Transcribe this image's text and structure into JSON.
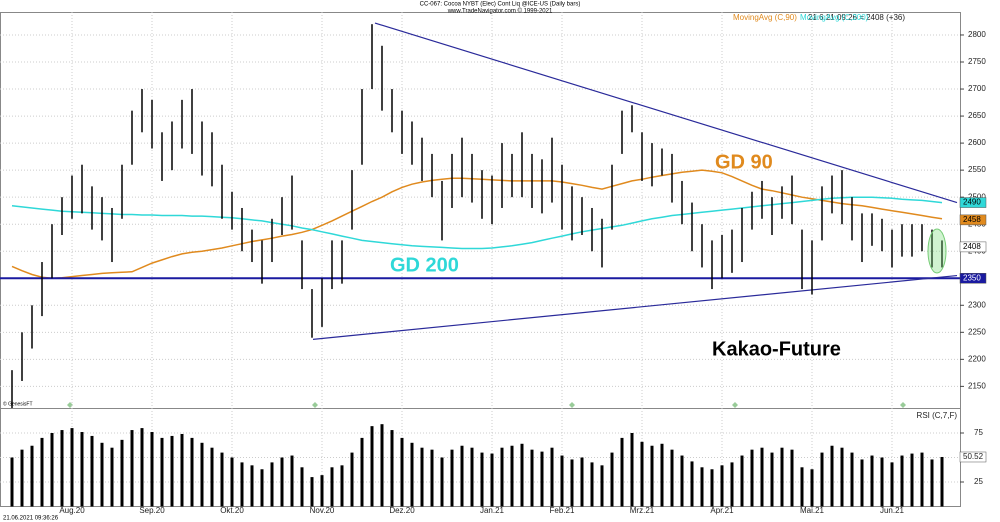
{
  "chart_data": [
    {
      "type": "ohlc",
      "title": "CC-067: Cocoa NYBT (Elec) Cont Liq @ICE-US  (Daily bars)",
      "subtitle": "www.TradeNavigator.com © 1999-2021",
      "stamp": "21.6.21 09:26 = 2408 (+36)",
      "source": "© GenesisFT",
      "footer": "21.06.2021 09:36:26",
      "categories": [
        null,
        null,
        null,
        null,
        null,
        null,
        "Aug.20",
        null,
        null,
        null,
        null,
        null,
        null,
        null,
        "Sep.20",
        null,
        null,
        null,
        null,
        null,
        null,
        null,
        "Okt.20",
        null,
        null,
        null,
        null,
        null,
        null,
        null,
        null,
        "Nov.20",
        null,
        null,
        null,
        null,
        null,
        null,
        null,
        "Dez.20",
        null,
        null,
        null,
        null,
        null,
        null,
        null,
        null,
        "Jan.21",
        null,
        null,
        null,
        null,
        null,
        null,
        "Feb.21",
        null,
        null,
        null,
        null,
        null,
        null,
        null,
        "Mrz.21",
        null,
        null,
        null,
        null,
        null,
        null,
        null,
        "Apr.21",
        null,
        null,
        null,
        null,
        null,
        null,
        null,
        null,
        "Mai.21",
        null,
        null,
        null,
        null,
        null,
        null,
        null,
        "Jun.21",
        null,
        null,
        null,
        null,
        null
      ],
      "high": [
        2180,
        2250,
        2300,
        2380,
        2450,
        2500,
        2540,
        2560,
        2520,
        2500,
        2480,
        2560,
        2660,
        2700,
        2680,
        2620,
        2640,
        2680,
        2700,
        2640,
        2620,
        2560,
        2510,
        2480,
        2440,
        2420,
        2460,
        2500,
        2540,
        2420,
        2330,
        2350,
        2420,
        2420,
        2550,
        2700,
        2820,
        2780,
        2700,
        2660,
        2640,
        2610,
        2580,
        2530,
        2580,
        2610,
        2580,
        2550,
        2540,
        2600,
        2580,
        2620,
        2580,
        2570,
        2610,
        2560,
        2520,
        2500,
        2480,
        2460,
        2560,
        2660,
        2670,
        2620,
        2600,
        2590,
        2580,
        2530,
        2490,
        2450,
        2420,
        2430,
        2440,
        2480,
        2510,
        2530,
        2500,
        2520,
        2540,
        2440,
        2420,
        2520,
        2540,
        2550,
        2500,
        2470,
        2470,
        2460,
        2440,
        2450,
        2450,
        2450,
        2440,
        2420
      ],
      "low": [
        2110,
        2160,
        2220,
        2280,
        2350,
        2430,
        2460,
        2470,
        2440,
        2420,
        2380,
        2460,
        2560,
        2620,
        2590,
        2530,
        2550,
        2590,
        2580,
        2540,
        2520,
        2460,
        2440,
        2400,
        2380,
        2340,
        2380,
        2430,
        2440,
        2330,
        2240,
        2260,
        2330,
        2340,
        2440,
        2560,
        2700,
        2660,
        2620,
        2580,
        2560,
        2530,
        2500,
        2420,
        2480,
        2500,
        2490,
        2460,
        2450,
        2480,
        2500,
        2500,
        2480,
        2470,
        2490,
        2440,
        2420,
        2430,
        2400,
        2370,
        2440,
        2580,
        2620,
        2530,
        2520,
        2540,
        2490,
        2450,
        2400,
        2370,
        2330,
        2350,
        2360,
        2380,
        2440,
        2460,
        2430,
        2460,
        2450,
        2330,
        2320,
        2420,
        2470,
        2450,
        2420,
        2380,
        2410,
        2400,
        2370,
        2390,
        2390,
        2400,
        2370,
        2370
      ],
      "bar_color": "#000000",
      "lines": [
        {
          "name": "MovingAvg (C,90)",
          "color": "#e08a1e",
          "values": [
            2372,
            2364,
            2357,
            2352,
            2350,
            2351,
            2353,
            2355,
            2357,
            2359,
            2360,
            2361,
            2362,
            2370,
            2378,
            2384,
            2390,
            2395,
            2398,
            2400,
            2403,
            2406,
            2410,
            2414,
            2418,
            2421,
            2424,
            2428,
            2431,
            2435,
            2440,
            2448,
            2456,
            2465,
            2474,
            2483,
            2492,
            2500,
            2510,
            2518,
            2524,
            2528,
            2531,
            2533,
            2535,
            2535,
            2534,
            2533,
            2532,
            2531,
            2530,
            2530,
            2530,
            2530,
            2530,
            2528,
            2525,
            2522,
            2518,
            2515,
            2520,
            2525,
            2530,
            2533,
            2537,
            2540,
            2543,
            2546,
            2548,
            2550,
            2548,
            2545,
            2538,
            2530,
            2522,
            2515,
            2512,
            2508,
            2504,
            2500,
            2497,
            2494,
            2491,
            2488,
            2486,
            2484,
            2481,
            2478,
            2475,
            2472,
            2469,
            2466,
            2463,
            2460
          ]
        },
        {
          "name": "MovingAvg (C,200)",
          "color": "#2fd8d8",
          "values": [
            2484,
            2482,
            2480,
            2478,
            2476,
            2474,
            2473,
            2472,
            2471,
            2470,
            2469,
            2468,
            2468,
            2467,
            2467,
            2466,
            2466,
            2466,
            2465,
            2465,
            2464,
            2463,
            2462,
            2460,
            2458,
            2456,
            2453,
            2450,
            2447,
            2443,
            2440,
            2436,
            2432,
            2428,
            2424,
            2420,
            2418,
            2416,
            2414,
            2412,
            2410,
            2409,
            2408,
            2407,
            2406,
            2405,
            2405,
            2405,
            2406,
            2408,
            2410,
            2413,
            2416,
            2420,
            2424,
            2428,
            2432,
            2436,
            2439,
            2442,
            2445,
            2448,
            2452,
            2456,
            2460,
            2463,
            2466,
            2468,
            2470,
            2472,
            2474,
            2476,
            2478,
            2480,
            2482,
            2484,
            2486,
            2488,
            2490,
            2492,
            2494,
            2496,
            2498,
            2499,
            2500,
            2500,
            2500,
            2499,
            2498,
            2496,
            2495,
            2494,
            2492,
            2490
          ]
        }
      ],
      "hline": {
        "value": 2350,
        "color": "#1a1aa0"
      },
      "trendlines": [
        {
          "x": [
            36.3,
            94.5
          ],
          "y": [
            2822,
            2490
          ],
          "color": "#2a2a9a"
        },
        {
          "x": [
            30.1,
            94.5
          ],
          "y": [
            2237,
            2355
          ],
          "color": "#2a2a9a"
        }
      ],
      "price_tags": [
        {
          "value": 2490,
          "color": "#2fd8d8"
        },
        {
          "value": 2458,
          "color": "#e08a1e"
        },
        {
          "value": 2408,
          "color": "#ffffff"
        },
        {
          "value": 2350,
          "color": "#1a1aa0"
        }
      ],
      "annotations": [
        {
          "text": "GD 90",
          "color": "#e08a1e"
        },
        {
          "text": "GD 200",
          "color": "#2fd8d8"
        },
        {
          "text": "Kakao-Future",
          "color": "#000000"
        }
      ],
      "ylim": [
        2110,
        2842.5
      ],
      "yticks": [
        2150,
        2200,
        2250,
        2300,
        2350,
        2400,
        2450,
        2500,
        2550,
        2600,
        2650,
        2700,
        2750,
        2800
      ],
      "grid": true
    },
    {
      "type": "bar",
      "title": "RSI (C,7,F)",
      "values": [
        50,
        58,
        62,
        70,
        75,
        78,
        80,
        76,
        72,
        65,
        60,
        68,
        78,
        80,
        76,
        70,
        72,
        74,
        70,
        65,
        60,
        55,
        50,
        45,
        42,
        38,
        45,
        50,
        52,
        40,
        30,
        32,
        40,
        42,
        55,
        70,
        82,
        84,
        78,
        70,
        65,
        60,
        58,
        50,
        58,
        62,
        60,
        55,
        54,
        60,
        62,
        64,
        58,
        56,
        60,
        52,
        48,
        50,
        45,
        42,
        55,
        70,
        75,
        66,
        62,
        64,
        58,
        52,
        46,
        40,
        38,
        42,
        45,
        52,
        58,
        60,
        55,
        60,
        58,
        40,
        38,
        55,
        62,
        60,
        55,
        48,
        52,
        50,
        45,
        52,
        54,
        55,
        48,
        50.52
      ],
      "color": "#000000",
      "ylim": [
        0,
        100
      ],
      "yticks": [
        25,
        50,
        75
      ],
      "grid": true
    }
  ]
}
